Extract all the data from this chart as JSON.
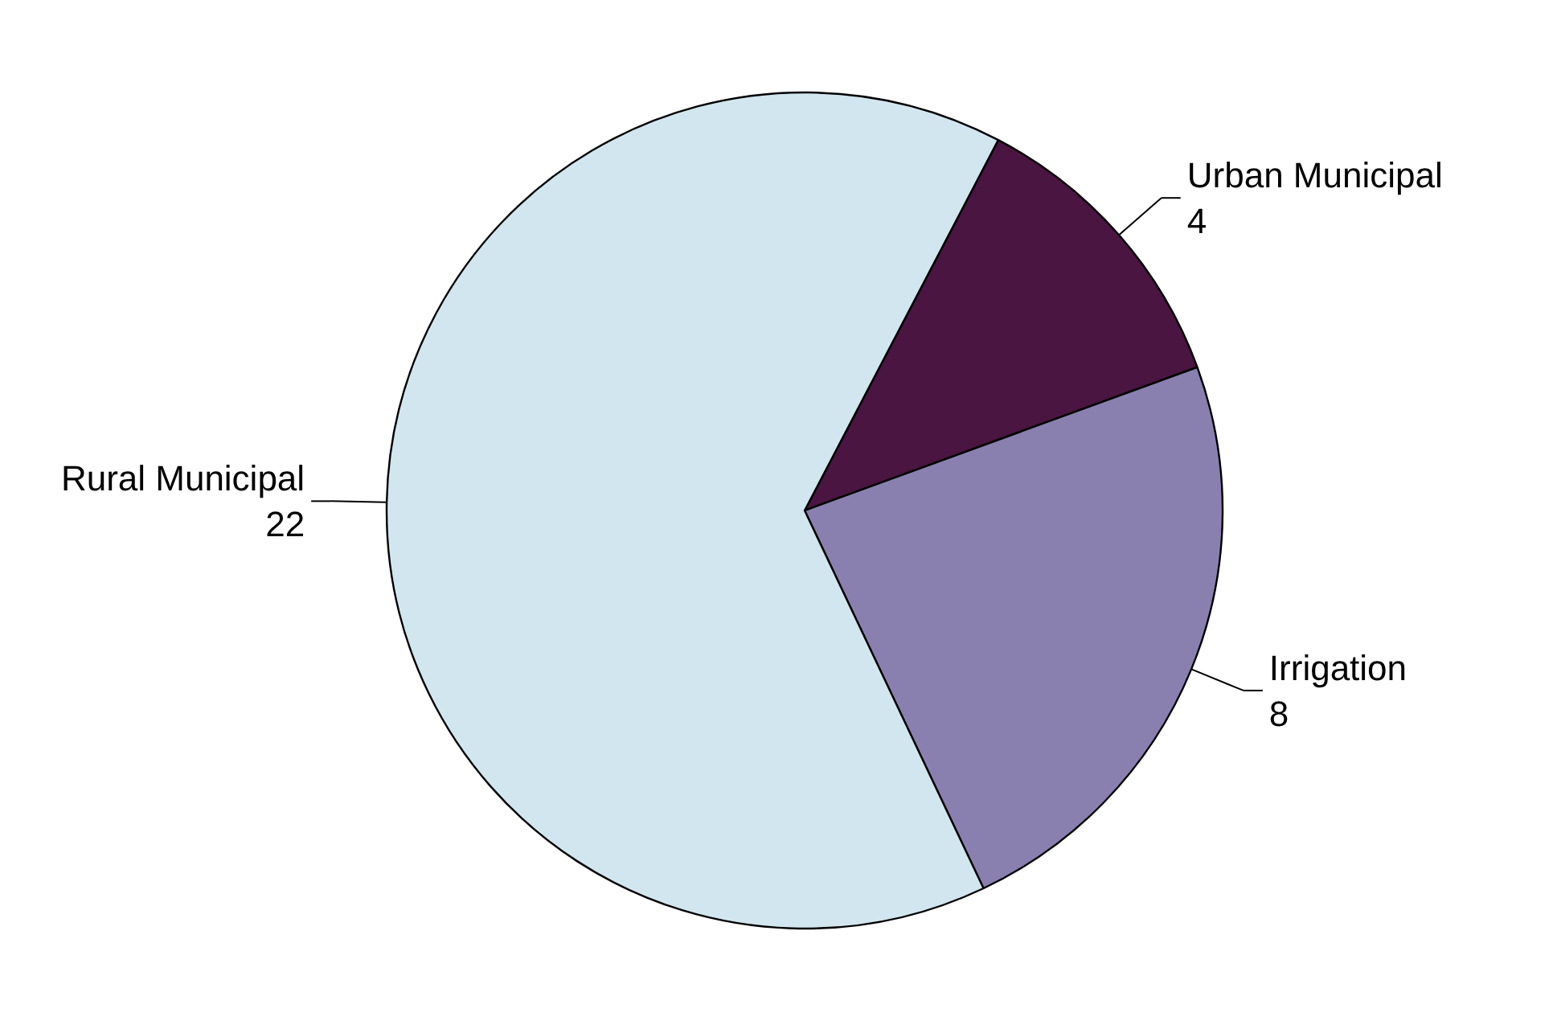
{
  "chart_data": {
    "type": "pie",
    "categories": [
      "Urban Municipal",
      "Irrigation",
      "Rural Municipal"
    ],
    "values": [
      4,
      8,
      22
    ],
    "colors": [
      "#4a1540",
      "#8a80b0",
      "#d2e6ef"
    ],
    "data_labels": true
  }
}
